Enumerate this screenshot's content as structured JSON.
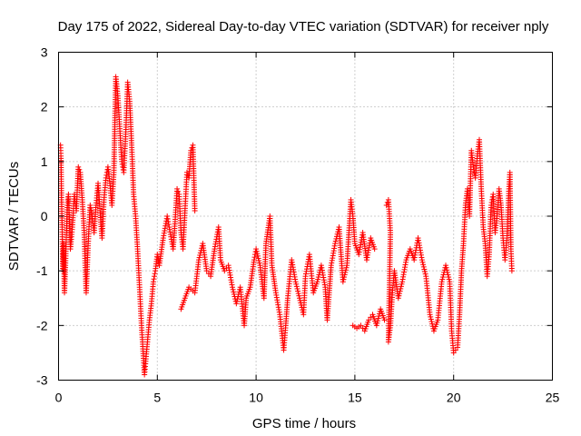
{
  "chart_data": {
    "type": "scatter",
    "title": "Day 175 of 2022, Sidereal Day-to-day VTEC variation (SDTVAR) for receiver nply",
    "xlabel": "GPS time / hours",
    "ylabel": "SDTVAR / TECUs",
    "xlim": [
      0,
      25
    ],
    "ylim": [
      -3,
      3
    ],
    "x_ticks": [
      0,
      5,
      10,
      15,
      20,
      25
    ],
    "y_ticks": [
      -3,
      -2,
      -1,
      0,
      1,
      2,
      3
    ],
    "x_tick_labels": [
      "0",
      "5",
      "10",
      "15",
      "20",
      "25"
    ],
    "y_tick_labels": [
      "-3",
      "-2",
      "-1",
      "0",
      "1",
      "2",
      "3"
    ],
    "grid": true,
    "marker": "+",
    "color": "#ff0000",
    "series": [
      {
        "name": "SDTVAR",
        "points": [
          [
            0.1,
            1.3
          ],
          [
            0.12,
            1.1
          ],
          [
            0.15,
            0.3
          ],
          [
            0.18,
            -0.2
          ],
          [
            0.2,
            -0.6
          ],
          [
            0.22,
            -1.0
          ],
          [
            0.25,
            -0.5
          ],
          [
            0.3,
            -1.4
          ],
          [
            0.35,
            -0.9
          ],
          [
            0.4,
            -0.3
          ],
          [
            0.45,
            0.2
          ],
          [
            0.5,
            0.4
          ],
          [
            0.55,
            -0.1
          ],
          [
            0.6,
            -0.6
          ],
          [
            0.7,
            -0.2
          ],
          [
            0.8,
            0.4
          ],
          [
            0.9,
            0.1
          ],
          [
            1.0,
            0.9
          ],
          [
            1.1,
            0.8
          ],
          [
            1.2,
            0.3
          ],
          [
            1.3,
            -0.3
          ],
          [
            1.35,
            -0.9
          ],
          [
            1.4,
            -1.4
          ],
          [
            1.5,
            -0.5
          ],
          [
            1.6,
            0.2
          ],
          [
            1.7,
            0.0
          ],
          [
            1.8,
            -0.3
          ],
          [
            1.9,
            0.2
          ],
          [
            2.0,
            0.6
          ],
          [
            2.1,
            0.1
          ],
          [
            2.2,
            -0.4
          ],
          [
            2.3,
            0.3
          ],
          [
            2.4,
            0.7
          ],
          [
            2.5,
            0.9
          ],
          [
            2.6,
            0.6
          ],
          [
            2.7,
            0.2
          ],
          [
            2.8,
            0.8
          ],
          [
            2.9,
            2.55
          ],
          [
            3.0,
            2.2
          ],
          [
            3.1,
            1.6
          ],
          [
            3.2,
            1.0
          ],
          [
            3.3,
            0.8
          ],
          [
            3.4,
            1.5
          ],
          [
            3.5,
            2.45
          ],
          [
            3.6,
            2.1
          ],
          [
            3.7,
            1.3
          ],
          [
            3.8,
            0.4
          ],
          [
            3.9,
            0.0
          ],
          [
            4.0,
            -0.6
          ],
          [
            4.1,
            -1.3
          ],
          [
            4.2,
            -2.0
          ],
          [
            4.3,
            -2.6
          ],
          [
            4.35,
            -2.9
          ],
          [
            4.4,
            -2.7
          ],
          [
            4.5,
            -2.3
          ],
          [
            4.6,
            -1.9
          ],
          [
            4.7,
            -1.6
          ],
          [
            4.8,
            -1.2
          ],
          [
            4.9,
            -1.0
          ],
          [
            5.0,
            -0.7
          ],
          [
            5.1,
            -0.9
          ],
          [
            5.3,
            -0.4
          ],
          [
            5.5,
            0.0
          ],
          [
            5.6,
            -0.2
          ],
          [
            5.8,
            -0.6
          ],
          [
            5.9,
            -0.1
          ],
          [
            6.0,
            0.5
          ],
          [
            6.1,
            0.4
          ],
          [
            6.2,
            -0.3
          ],
          [
            6.3,
            -0.6
          ],
          [
            6.4,
            0.1
          ],
          [
            6.5,
            0.8
          ],
          [
            6.6,
            0.7
          ],
          [
            6.7,
            1.2
          ],
          [
            6.8,
            1.3
          ],
          [
            6.9,
            0.1
          ],
          [
            6.2,
            -1.7
          ],
          [
            6.4,
            -1.5
          ],
          [
            6.6,
            -1.3
          ],
          [
            6.9,
            -1.4
          ],
          [
            7.1,
            -0.8
          ],
          [
            7.3,
            -0.5
          ],
          [
            7.5,
            -1.0
          ],
          [
            7.7,
            -1.1
          ],
          [
            7.9,
            -0.6
          ],
          [
            8.1,
            -0.2
          ],
          [
            8.2,
            -0.8
          ],
          [
            8.4,
            -1.0
          ],
          [
            8.6,
            -0.9
          ],
          [
            8.8,
            -1.3
          ],
          [
            9.0,
            -1.6
          ],
          [
            9.2,
            -1.3
          ],
          [
            9.4,
            -2.0
          ],
          [
            9.5,
            -1.5
          ],
          [
            9.7,
            -1.3
          ],
          [
            9.9,
            -0.8
          ],
          [
            10.0,
            -0.6
          ],
          [
            10.2,
            -0.9
          ],
          [
            10.4,
            -1.5
          ],
          [
            10.5,
            -0.5
          ],
          [
            10.7,
            0.0
          ],
          [
            10.8,
            -0.9
          ],
          [
            11.0,
            -1.4
          ],
          [
            11.2,
            -1.8
          ],
          [
            11.4,
            -2.45
          ],
          [
            11.5,
            -2.0
          ],
          [
            11.6,
            -1.5
          ],
          [
            11.8,
            -0.8
          ],
          [
            12.0,
            -1.2
          ],
          [
            12.2,
            -1.5
          ],
          [
            12.4,
            -1.8
          ],
          [
            12.5,
            -1.1
          ],
          [
            12.7,
            -0.7
          ],
          [
            12.9,
            -1.4
          ],
          [
            13.1,
            -1.2
          ],
          [
            13.3,
            -0.9
          ],
          [
            13.5,
            -1.3
          ],
          [
            13.6,
            -1.9
          ],
          [
            13.8,
            -0.9
          ],
          [
            14.0,
            -0.5
          ],
          [
            14.2,
            -0.2
          ],
          [
            14.4,
            -1.2
          ],
          [
            14.6,
            -0.9
          ],
          [
            14.8,
            0.3
          ],
          [
            14.9,
            0.0
          ],
          [
            15.0,
            -0.5
          ],
          [
            15.2,
            -0.7
          ],
          [
            15.4,
            -0.3
          ],
          [
            15.6,
            -0.8
          ],
          [
            15.8,
            -0.4
          ],
          [
            16.0,
            -0.6
          ],
          [
            14.9,
            -2.0
          ],
          [
            15.1,
            -2.05
          ],
          [
            15.3,
            -2.0
          ],
          [
            15.5,
            -2.1
          ],
          [
            15.7,
            -1.9
          ],
          [
            15.9,
            -1.8
          ],
          [
            16.1,
            -2.0
          ],
          [
            16.3,
            -1.7
          ],
          [
            16.5,
            -1.9
          ],
          [
            16.6,
            0.2
          ],
          [
            16.7,
            0.3
          ],
          [
            16.8,
            -0.3
          ],
          [
            16.7,
            -2.3
          ],
          [
            16.8,
            -2.0
          ],
          [
            16.9,
            -1.4
          ],
          [
            17.0,
            -1.0
          ],
          [
            17.2,
            -1.5
          ],
          [
            17.4,
            -1.2
          ],
          [
            17.6,
            -0.8
          ],
          [
            17.8,
            -0.6
          ],
          [
            18.0,
            -0.8
          ],
          [
            18.2,
            -0.4
          ],
          [
            18.4,
            -0.8
          ],
          [
            18.6,
            -1.1
          ],
          [
            18.8,
            -1.8
          ],
          [
            19.0,
            -2.1
          ],
          [
            19.2,
            -1.9
          ],
          [
            19.4,
            -1.2
          ],
          [
            19.6,
            -0.9
          ],
          [
            19.8,
            -1.2
          ],
          [
            19.9,
            -2.1
          ],
          [
            20.0,
            -2.5
          ],
          [
            20.2,
            -2.4
          ],
          [
            20.3,
            -1.8
          ],
          [
            20.4,
            -1.0
          ],
          [
            20.5,
            -0.5
          ],
          [
            20.6,
            0.2
          ],
          [
            20.7,
            0.5
          ],
          [
            20.8,
            0.0
          ],
          [
            20.9,
            1.2
          ],
          [
            21.0,
            0.9
          ],
          [
            21.1,
            0.7
          ],
          [
            21.2,
            1.1
          ],
          [
            21.3,
            1.4
          ],
          [
            21.4,
            0.5
          ],
          [
            21.5,
            -0.2
          ],
          [
            21.6,
            -0.5
          ],
          [
            21.7,
            -1.1
          ],
          [
            21.8,
            -0.7
          ],
          [
            21.9,
            0.2
          ],
          [
            22.0,
            0.4
          ],
          [
            22.1,
            -0.3
          ],
          [
            22.2,
            0.0
          ],
          [
            22.3,
            0.5
          ],
          [
            22.4,
            0.2
          ],
          [
            22.5,
            -0.4
          ],
          [
            22.6,
            -0.8
          ],
          [
            22.7,
            -0.4
          ],
          [
            22.8,
            0.5
          ],
          [
            22.85,
            0.8
          ],
          [
            22.9,
            -0.6
          ],
          [
            22.95,
            -1.0
          ]
        ]
      }
    ]
  }
}
